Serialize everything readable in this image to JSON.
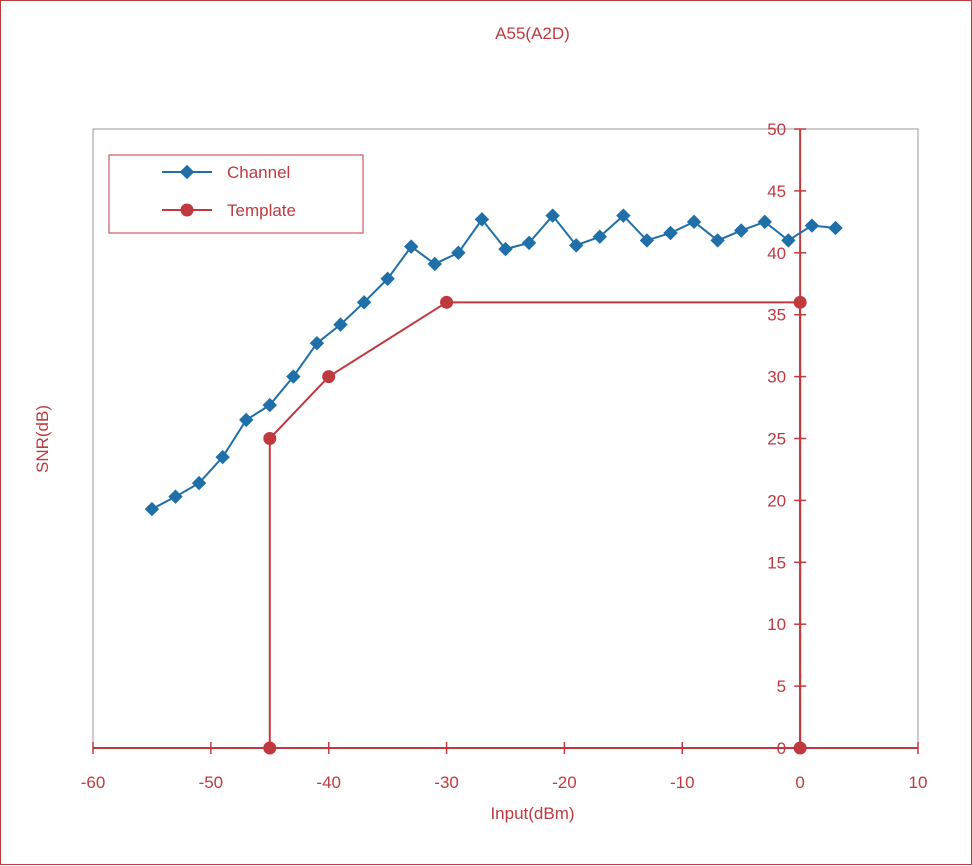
{
  "chart_data": {
    "type": "line",
    "title": "A55(A2D)",
    "xlabel": "Input(dBm)",
    "ylabel": "SNR(dB)",
    "xlim": [
      -60,
      10
    ],
    "ylim": [
      0,
      50
    ],
    "x_ticks": [
      -60,
      -50,
      -40,
      -30,
      -20,
      -10,
      0,
      10
    ],
    "y_ticks": [
      0,
      5,
      10,
      15,
      20,
      25,
      30,
      35,
      40,
      45,
      50
    ],
    "grid": false,
    "legend_position": "top-left",
    "series": [
      {
        "name": "Channel",
        "color": "#1f6fa8",
        "marker": "diamond",
        "x": [
          -55,
          -53,
          -51,
          -49,
          -47,
          -45,
          -43,
          -41,
          -39,
          -37,
          -35,
          -33,
          -31,
          -29,
          -27,
          -25,
          -23,
          -21,
          -19,
          -17,
          -15,
          -13,
          -11,
          -9,
          -7,
          -5,
          -3,
          -1,
          1,
          3
        ],
        "y": [
          19.3,
          20.3,
          21.4,
          23.5,
          26.5,
          27.7,
          30.0,
          32.7,
          34.2,
          36.0,
          37.9,
          40.5,
          39.1,
          40.0,
          42.7,
          40.3,
          40.8,
          43.0,
          40.6,
          41.3,
          43.0,
          41.0,
          41.6,
          42.5,
          41.0,
          41.8,
          42.5,
          41.0,
          42.2,
          42.0
        ]
      },
      {
        "name": "Template",
        "color": "#c0393f",
        "marker": "circle",
        "x": [
          -45,
          -45,
          -40,
          -30,
          0,
          0
        ],
        "y": [
          0,
          25,
          30,
          36,
          36,
          0
        ]
      }
    ]
  }
}
